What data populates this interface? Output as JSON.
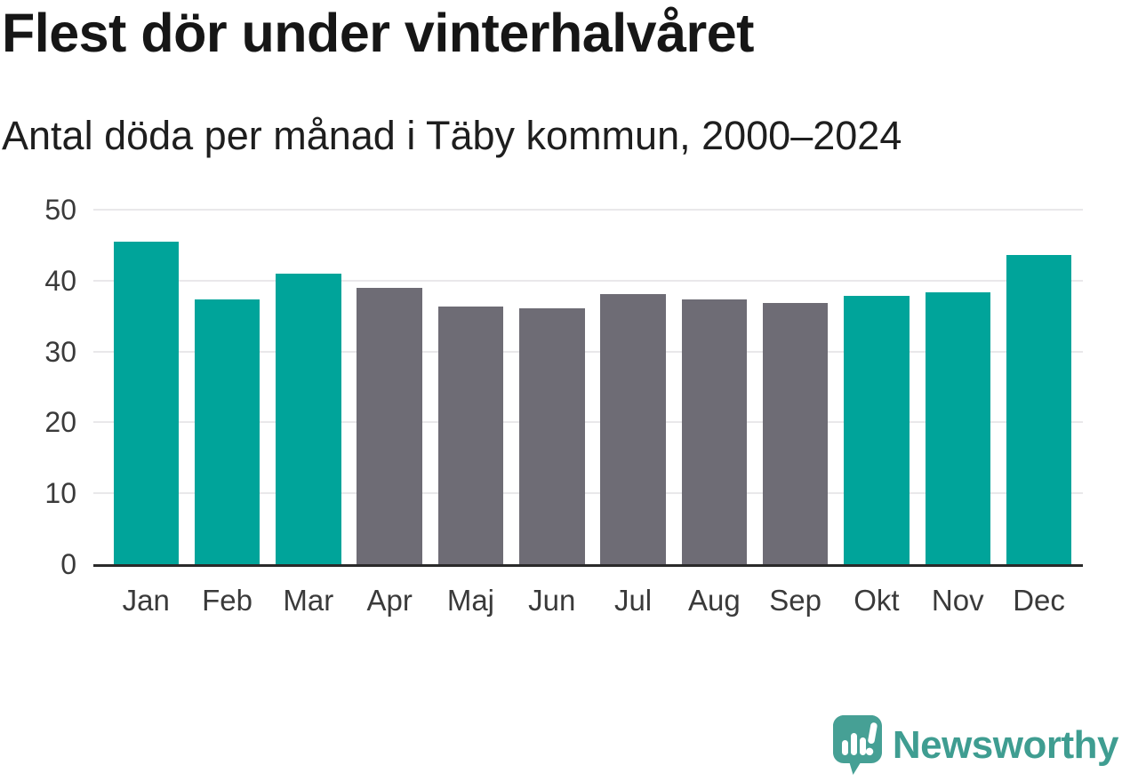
{
  "chart_data": {
    "type": "bar",
    "title": "Flest dör under vinterhalvåret",
    "subtitle": "Antal döda per månad i Täby kommun, 2000–2024",
    "categories": [
      "Jan",
      "Feb",
      "Mar",
      "Apr",
      "Maj",
      "Jun",
      "Jul",
      "Aug",
      "Sep",
      "Okt",
      "Nov",
      "Dec"
    ],
    "values": [
      45.5,
      37.4,
      41.0,
      39.0,
      36.4,
      36.1,
      38.1,
      37.4,
      36.9,
      37.9,
      38.3,
      43.6
    ],
    "point_colors": [
      "#00a49a",
      "#00a49a",
      "#00a49a",
      "#6e6c75",
      "#6e6c75",
      "#6e6c75",
      "#6e6c75",
      "#6e6c75",
      "#6e6c75",
      "#00a49a",
      "#00a49a",
      "#00a49a"
    ],
    "color_meaning": {
      "winter_half_year": "#00a49a",
      "summer_half_year": "#6e6c75"
    },
    "xlabel": "",
    "ylabel": "",
    "ylim": [
      0,
      50
    ],
    "yticks": [
      0,
      10,
      20,
      30,
      40,
      50
    ],
    "grid": true,
    "legend_position": "none"
  },
  "footer": {
    "brand_name": "Newsworthy",
    "brand_color": "#3f9d91",
    "icon": "newsworthy-speech-bubble-bar-chart-icon",
    "icon_color": "#46a095"
  }
}
